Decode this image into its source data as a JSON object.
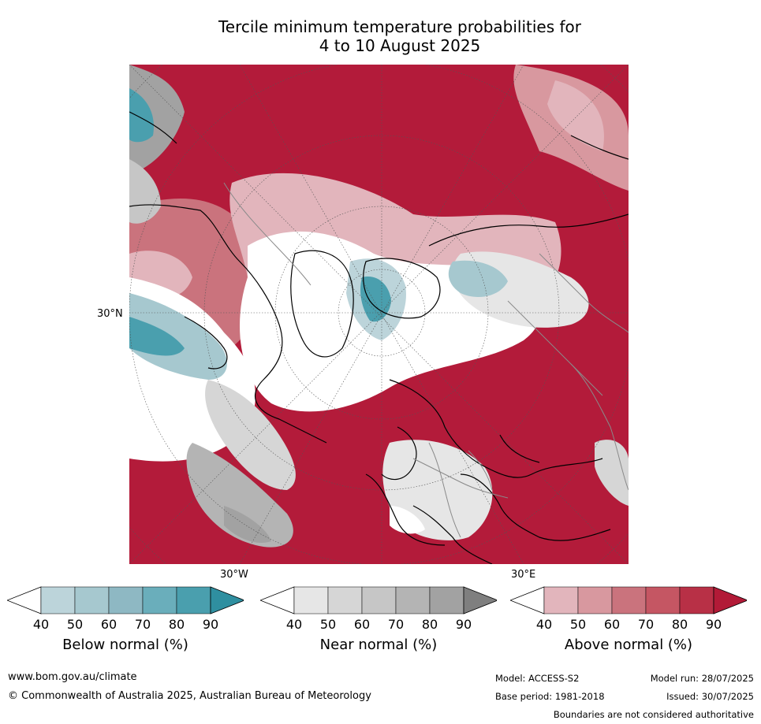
{
  "title": {
    "line1": "Tercile minimum temperature probabilities for",
    "line2": "4 to 10 August 2025"
  },
  "map": {
    "latitude_label": "30°N",
    "longitude_labels": {
      "west": "30°W",
      "east": "30°E"
    },
    "palette": {
      "above_dominant": "#b31b3a",
      "below_dominant": "#3a9aae",
      "near_dominant": "#a0a0a0",
      "neutral": "#ffffff",
      "coastline": "#000000",
      "boundaries": "#8a8a8a"
    }
  },
  "legends": [
    {
      "title": "Below normal (%)",
      "ticks": [
        "40",
        "50",
        "60",
        "70",
        "80",
        "90"
      ],
      "colors": [
        "#ffffff",
        "#bcd4da",
        "#a6c8cf",
        "#8eb8c3",
        "#6aaebb",
        "#4a9fae",
        "#2f8fa0"
      ]
    },
    {
      "title": "Near normal (%)",
      "ticks": [
        "40",
        "50",
        "60",
        "70",
        "80",
        "90"
      ],
      "colors": [
        "#ffffff",
        "#e6e6e6",
        "#d6d6d6",
        "#c6c6c6",
        "#b4b4b4",
        "#a2a2a2",
        "#7f7f7f"
      ]
    },
    {
      "title": "Above normal (%)",
      "ticks": [
        "40",
        "50",
        "60",
        "70",
        "80",
        "90"
      ],
      "colors": [
        "#ffffff",
        "#e2b5bc",
        "#d8989f",
        "#ca737d",
        "#c55663",
        "#b83046",
        "#b21a37"
      ]
    }
  ],
  "footer": {
    "website": "www.bom.gov.au/climate",
    "copyright": "© Commonwealth of Australia 2025, Australian Bureau of Meteorology",
    "model": "Model: ACCESS-S2",
    "base_period": "Base period: 1981-2018",
    "model_run": "Model run: 28/07/2025",
    "issued": "Issued: 30/07/2025",
    "disclaimer": "Boundaries are not considered authoritative"
  }
}
